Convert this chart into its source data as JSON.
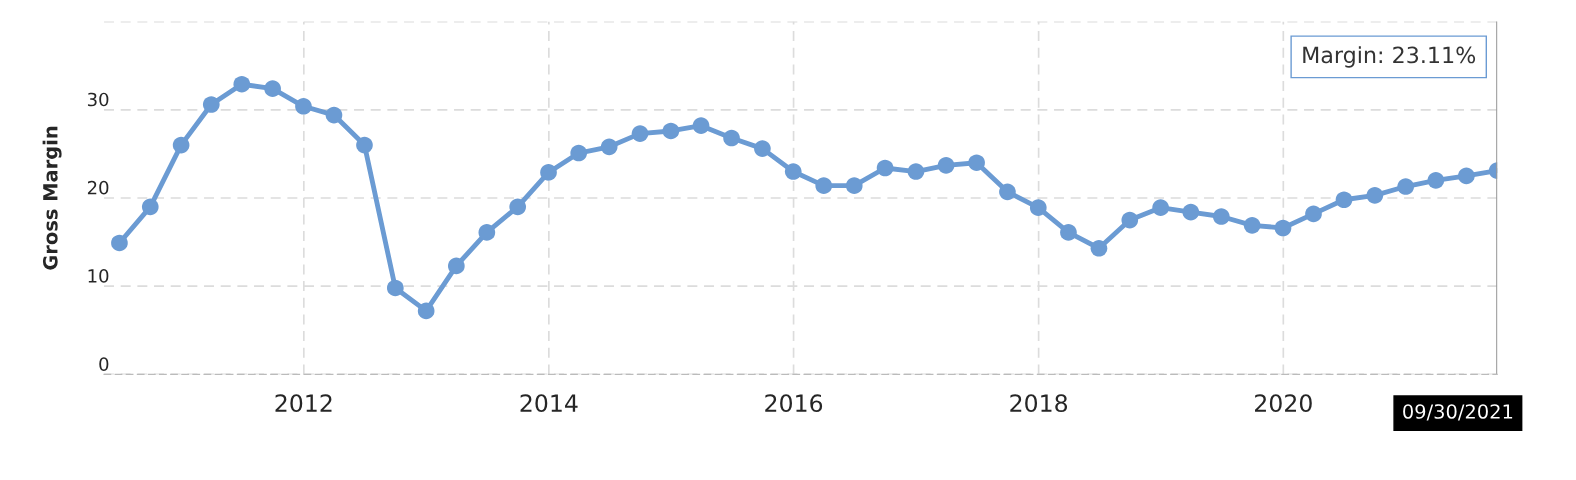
{
  "chart_data": {
    "type": "line",
    "ylabel": "Gross Margin",
    "x": [
      "2010-06-30",
      "2010-09-30",
      "2010-12-31",
      "2011-03-31",
      "2011-06-30",
      "2011-09-30",
      "2011-12-31",
      "2012-03-31",
      "2012-06-30",
      "2012-09-30",
      "2012-12-31",
      "2013-03-31",
      "2013-06-30",
      "2013-09-30",
      "2013-12-31",
      "2014-03-31",
      "2014-06-30",
      "2014-09-30",
      "2014-12-31",
      "2015-03-31",
      "2015-06-30",
      "2015-09-30",
      "2015-12-31",
      "2016-03-31",
      "2016-06-30",
      "2016-09-30",
      "2016-12-31",
      "2017-03-31",
      "2017-06-30",
      "2017-09-30",
      "2017-12-31",
      "2018-03-31",
      "2018-06-30",
      "2018-09-30",
      "2018-12-31",
      "2019-03-31",
      "2019-06-30",
      "2019-09-30",
      "2019-12-31",
      "2020-03-31",
      "2020-06-30",
      "2020-09-30",
      "2020-12-31",
      "2021-03-31",
      "2021-06-30",
      "2021-09-30"
    ],
    "series": [
      {
        "color": "#6b9bd3",
        "values": [
          14.9,
          19.0,
          26.0,
          30.6,
          32.9,
          32.4,
          30.4,
          29.4,
          26.0,
          9.8,
          7.2,
          12.3,
          16.1,
          19.0,
          22.9,
          25.1,
          25.8,
          27.3,
          27.6,
          28.2,
          26.8,
          25.6,
          23.0,
          21.4,
          21.4,
          23.4,
          23.0,
          23.7,
          24.0,
          20.7,
          18.9,
          16.1,
          14.3,
          17.5,
          18.9,
          18.4,
          17.9,
          16.9,
          16.6,
          18.2,
          19.8,
          20.3,
          21.3,
          22.0,
          22.5,
          23.11
        ]
      }
    ],
    "xlim": [
      "2010-05-15",
      "2021-09-30"
    ],
    "xticks": [
      {
        "value": "2012-01-01",
        "label": "2012"
      },
      {
        "value": "2014-01-01",
        "label": "2014"
      },
      {
        "value": "2016-01-01",
        "label": "2016"
      },
      {
        "value": "2018-01-01",
        "label": "2018"
      },
      {
        "value": "2020-01-01",
        "label": "2020"
      }
    ],
    "ylim": [
      0,
      40
    ],
    "yticks": [
      0,
      10,
      20,
      30,
      {
        "value": 40,
        "label": null
      }
    ],
    "grid": true,
    "marker": "circle",
    "line_style": "solid",
    "annotations": [
      "Margin: 23.11%",
      "09/30/2021"
    ]
  }
}
